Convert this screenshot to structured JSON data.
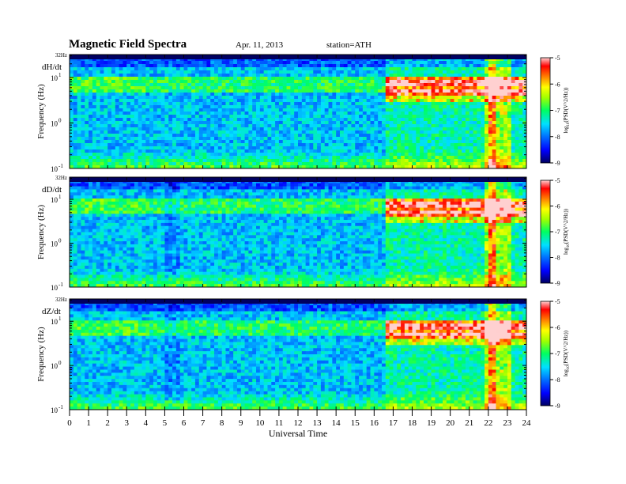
{
  "header": {
    "title": "Magnetic  Field  Spectra",
    "date": "Apr. 11, 2013",
    "station": "station=ATH"
  },
  "chart_data": {
    "type": "heatmap",
    "xlabel": "Universal Time",
    "ylabel": "Frequency  (Hz)",
    "xlim": [
      0,
      24
    ],
    "x_ticks": [
      "0",
      "1",
      "2",
      "3",
      "4",
      "5",
      "6",
      "7",
      "8",
      "9",
      "10",
      "11",
      "12",
      "13",
      "14",
      "15",
      "16",
      "17",
      "18",
      "19",
      "20",
      "21",
      "22",
      "23",
      "24"
    ],
    "y_scale": "log",
    "ylim_hz": [
      0.1,
      32
    ],
    "y_top_label": "32Hz",
    "y_ticks": [
      {
        "value": 10,
        "base": "10",
        "exp": "1"
      },
      {
        "value": 1,
        "base": "10",
        "exp": "0"
      },
      {
        "value": 0.1,
        "base": "10",
        "exp": "-1"
      }
    ],
    "colorbar": {
      "label": "log10(PSD(V^2/Hz))",
      "label_text": "log",
      "label_sub": "10",
      "label_rest": "(PSD(V^2/Hz))",
      "range": [
        -9,
        -5
      ],
      "ticks": [
        "-5",
        "-6",
        "-7",
        "-8",
        "-9"
      ],
      "colors": [
        "#000080",
        "#0000ff",
        "#0080ff",
        "#00ffff",
        "#00ff00",
        "#ffff00",
        "#ff8000",
        "#ff0000",
        "#ffc0c0"
      ]
    },
    "panels": [
      {
        "name": "dH/dt"
      },
      {
        "name": "dD/dt"
      },
      {
        "name": "dZ/dt"
      }
    ]
  }
}
